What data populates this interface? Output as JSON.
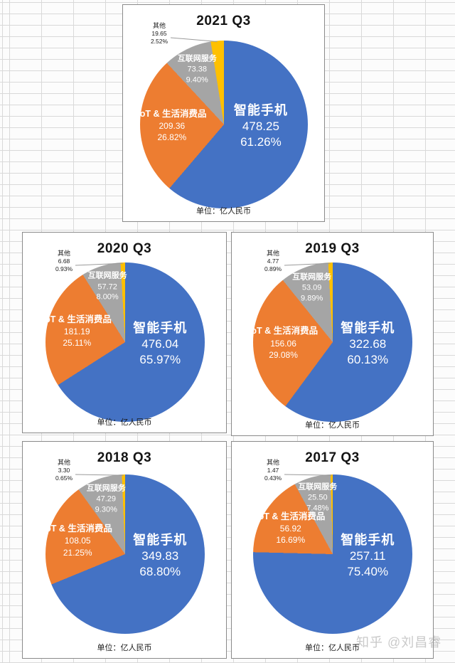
{
  "page": {
    "unit_label": "单位：亿人民币",
    "watermark": "知乎 @刘昌睿"
  },
  "colors": {
    "smartphone": "#4472C4",
    "iot": "#ED7D31",
    "internet": "#A5A5A5",
    "other": "#FFC000",
    "leader_line": "#9a9a9a",
    "panel_border": "#8a8a8a",
    "grid_line": "#d9d9d9"
  },
  "chart_data": [
    {
      "type": "pie",
      "title": "2021 Q3",
      "unit_label": "单位：亿人民币",
      "start_angle": "top",
      "direction": "clockwise",
      "slices": [
        {
          "label": "智能手机",
          "value": "478.25",
          "value_num": 478.25,
          "pct": "61.26%",
          "share": 61.26,
          "color": "#4472C4"
        },
        {
          "label": "IoT & 生活消费品",
          "value": "209.36",
          "value_num": 209.36,
          "pct": "26.82%",
          "share": 26.82,
          "color": "#ED7D31"
        },
        {
          "label": "互联网服务",
          "value": "73.38",
          "value_num": 73.38,
          "pct": "9.40%",
          "share": 9.4,
          "color": "#A5A5A5"
        },
        {
          "label": "其他",
          "value": "19.65",
          "value_num": 19.65,
          "pct": "2.52%",
          "share": 2.52,
          "color": "#FFC000"
        }
      ]
    },
    {
      "type": "pie",
      "title": "2020 Q3",
      "unit_label": "单位：亿人民币",
      "start_angle": "top",
      "direction": "clockwise",
      "slices": [
        {
          "label": "智能手机",
          "value": "476.04",
          "value_num": 476.04,
          "pct": "65.97%",
          "share": 65.97,
          "color": "#4472C4"
        },
        {
          "label": "IoT & 生活消费品",
          "value": "181.19",
          "value_num": 181.19,
          "pct": "25.11%",
          "share": 25.11,
          "color": "#ED7D31"
        },
        {
          "label": "互联网服务",
          "value": "57.72",
          "value_num": 57.72,
          "pct": "8.00%",
          "share": 8.0,
          "color": "#A5A5A5"
        },
        {
          "label": "其他",
          "value": "6.68",
          "value_num": 6.68,
          "pct": "0.93%",
          "share": 0.93,
          "color": "#FFC000"
        }
      ]
    },
    {
      "type": "pie",
      "title": "2019 Q3",
      "unit_label": "单位：亿人民币",
      "start_angle": "top",
      "direction": "clockwise",
      "slices": [
        {
          "label": "智能手机",
          "value": "322.68",
          "value_num": 322.68,
          "pct": "60.13%",
          "share": 60.13,
          "color": "#4472C4"
        },
        {
          "label": "IoT & 生活消费品",
          "value": "156.06",
          "value_num": 156.06,
          "pct": "29.08%",
          "share": 29.08,
          "color": "#ED7D31"
        },
        {
          "label": "互联网服务",
          "value": "53.09",
          "value_num": 53.09,
          "pct": "9.89%",
          "share": 9.89,
          "color": "#A5A5A5"
        },
        {
          "label": "其他",
          "value": "4.77",
          "value_num": 4.77,
          "pct": "0.89%",
          "share": 0.89,
          "color": "#FFC000"
        }
      ]
    },
    {
      "type": "pie",
      "title": "2018 Q3",
      "unit_label": "单位：亿人民币",
      "start_angle": "top",
      "direction": "clockwise",
      "slices": [
        {
          "label": "智能手机",
          "value": "349.83",
          "value_num": 349.83,
          "pct": "68.80%",
          "share": 68.8,
          "color": "#4472C4"
        },
        {
          "label": "IoT & 生活消费品",
          "value": "108.05",
          "value_num": 108.05,
          "pct": "21.25%",
          "share": 21.25,
          "color": "#ED7D31"
        },
        {
          "label": "互联网服务",
          "value": "47.29",
          "value_num": 47.29,
          "pct": "9.30%",
          "share": 9.3,
          "color": "#A5A5A5"
        },
        {
          "label": "其他",
          "value": "3.30",
          "value_num": 3.3,
          "pct": "0.65%",
          "share": 0.65,
          "color": "#FFC000"
        }
      ]
    },
    {
      "type": "pie",
      "title": "2017 Q3",
      "unit_label": "单位：亿人民币",
      "start_angle": "top",
      "direction": "clockwise",
      "slices": [
        {
          "label": "智能手机",
          "value": "257.11",
          "value_num": 257.11,
          "pct": "75.40%",
          "share": 75.4,
          "color": "#4472C4"
        },
        {
          "label": "IoT & 生活消费品",
          "value": "56.92",
          "value_num": 56.92,
          "pct": "16.69%",
          "share": 16.69,
          "color": "#ED7D31"
        },
        {
          "label": "互联网服务",
          "value": "25.50",
          "value_num": 25.5,
          "pct": "7.48%",
          "share": 7.48,
          "color": "#A5A5A5"
        },
        {
          "label": "其他",
          "value": "1.47",
          "value_num": 1.47,
          "pct": "0.43%",
          "share": 0.43,
          "color": "#FFC000"
        }
      ]
    }
  ]
}
